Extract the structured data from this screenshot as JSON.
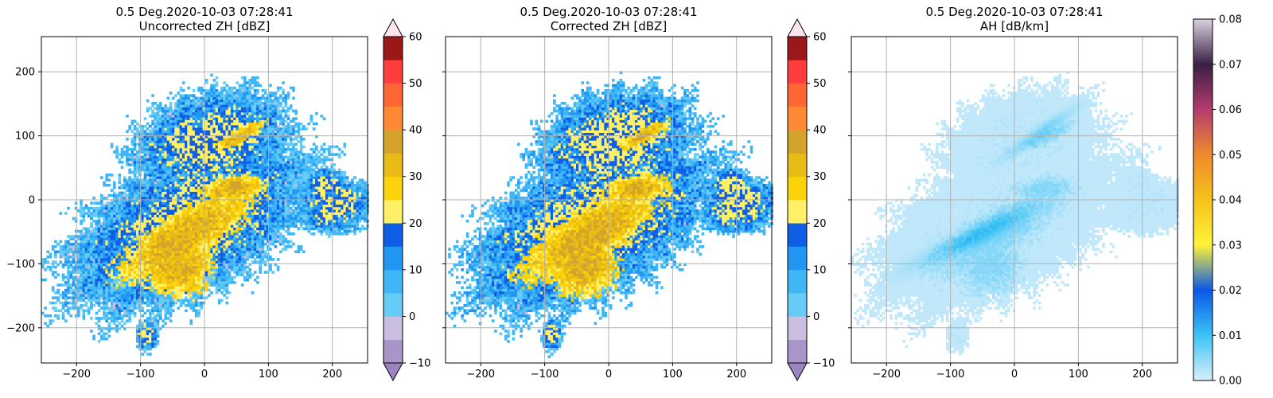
{
  "chart_data": [
    {
      "type": "heatmap",
      "title": "0.5 Deg.2020-10-03 07:28:41",
      "subtitle": "Uncorrected ZH [dBZ]",
      "xlim": [
        -255,
        255
      ],
      "ylim": [
        -255,
        255
      ],
      "xticks": [
        -200,
        -100,
        0,
        100,
        200
      ],
      "yticks": [
        200,
        100,
        0,
        -100,
        -200
      ],
      "xtick_labels": [
        "−200",
        "−100",
        "0",
        "100",
        "200"
      ],
      "ytick_labels": [
        "200",
        "100",
        "0",
        "−100",
        "−200"
      ],
      "grid": true,
      "colorbar": {
        "min": -10,
        "max": 60,
        "ticks": [
          "60",
          "50",
          "40",
          "30",
          "20",
          "10",
          "0",
          "−10"
        ],
        "extend": "both",
        "colors": [
          "#a995c9",
          "#c9bde0",
          "#66ccf5",
          "#3fb6f5",
          "#2196f3",
          "#0f5fe6",
          "#fff066",
          "#fcd20a",
          "#e8bb17",
          "#d3a32b",
          "#ff8a33",
          "#ff6633",
          "#ff3d3d",
          "#9c1717"
        ],
        "over_color": "#fbe4ea",
        "under_color": "#9b84bf"
      },
      "field": "zh_uncorrected"
    },
    {
      "type": "heatmap",
      "title": "0.5 Deg.2020-10-03 07:28:41",
      "subtitle": "Corrected ZH [dBZ]",
      "xlim": [
        -255,
        255
      ],
      "ylim": [
        -255,
        255
      ],
      "xticks": [
        -200,
        -100,
        0,
        100,
        200
      ],
      "yticks": [
        200,
        100,
        0,
        -100,
        -200
      ],
      "xtick_labels": [
        "−200",
        "−100",
        "0",
        "100",
        "200"
      ],
      "ytick_labels": [
        "",
        "",
        "",
        "",
        ""
      ],
      "grid": true,
      "colorbar": {
        "min": -10,
        "max": 60,
        "ticks": [
          "60",
          "50",
          "40",
          "30",
          "20",
          "10",
          "0",
          "−10"
        ],
        "extend": "both",
        "colors": [
          "#a995c9",
          "#c9bde0",
          "#66ccf5",
          "#3fb6f5",
          "#2196f3",
          "#0f5fe6",
          "#fff066",
          "#fcd20a",
          "#e8bb17",
          "#d3a32b",
          "#ff8a33",
          "#ff6633",
          "#ff3d3d",
          "#9c1717"
        ],
        "over_color": "#fbe4ea",
        "under_color": "#9b84bf"
      },
      "field": "zh_corrected"
    },
    {
      "type": "heatmap",
      "title": "0.5 Deg.2020-10-03 07:28:41",
      "subtitle": "AH [dB/km]",
      "xlim": [
        -255,
        255
      ],
      "ylim": [
        -255,
        255
      ],
      "xticks": [
        -200,
        -100,
        0,
        100,
        200
      ],
      "yticks": [
        200,
        100,
        0,
        -100,
        -200
      ],
      "xtick_labels": [
        "−200",
        "−100",
        "0",
        "100",
        "200"
      ],
      "ytick_labels": [
        "",
        "",
        "",
        "",
        ""
      ],
      "grid": true,
      "colorbar": {
        "min": 0.0,
        "max": 0.08,
        "ticks": [
          "0.08",
          "0.07",
          "0.06",
          "0.05",
          "0.04",
          "0.03",
          "0.02",
          "0.01",
          "0.00"
        ],
        "extend": "neither",
        "gradient": [
          "#d8eefb",
          "#3cc3f5",
          "#0a58e8",
          "#fff23a",
          "#f5c21b",
          "#f08a2d",
          "#b33c6e",
          "#3a1f45",
          "#d9d2df"
        ]
      },
      "field": "attenuation"
    }
  ]
}
